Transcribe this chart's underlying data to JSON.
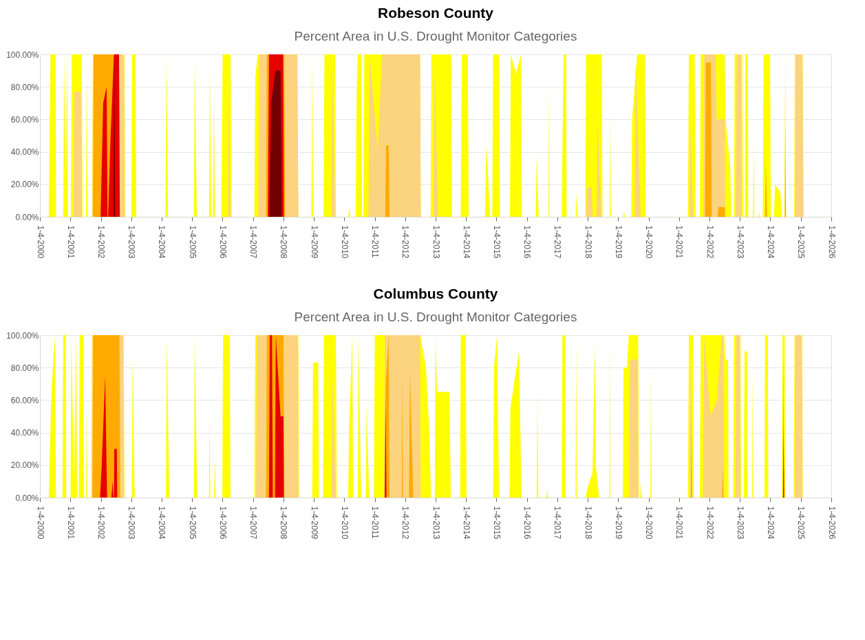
{
  "chart_data": [
    {
      "type": "area",
      "title": "Robeson County",
      "subtitle": "Percent Area in U.S. Drought Monitor Categories",
      "xlim": [
        "2000-01-04",
        "2026-01-04"
      ],
      "xticks": [
        {
          "value": "2000-01-04",
          "label": "1-4-2000"
        },
        {
          "value": "2001-01-04",
          "label": "1-4-2001"
        },
        {
          "value": "2002-01-04",
          "label": "1-4-2002"
        },
        {
          "value": "2003-01-04",
          "label": "1-4-2003"
        },
        {
          "value": "2004-01-04",
          "label": "1-4-2004"
        },
        {
          "value": "2005-01-04",
          "label": "1-4-2005"
        },
        {
          "value": "2006-01-04",
          "label": "1-4-2006"
        },
        {
          "value": "2007-01-04",
          "label": "1-4-2007"
        },
        {
          "value": "2008-01-04",
          "label": "1-4-2008"
        },
        {
          "value": "2009-01-04",
          "label": "1-4-2009"
        },
        {
          "value": "2010-01-04",
          "label": "1-4-2010"
        },
        {
          "value": "2011-01-04",
          "label": "1-4-2011"
        },
        {
          "value": "2012-01-04",
          "label": "1-4-2012"
        },
        {
          "value": "2013-01-04",
          "label": "1-4-2013"
        },
        {
          "value": "2014-01-04",
          "label": "1-4-2014"
        },
        {
          "value": "2015-01-04",
          "label": "1-4-2015"
        },
        {
          "value": "2016-01-04",
          "label": "1-4-2016"
        },
        {
          "value": "2017-01-04",
          "label": "1-4-2017"
        },
        {
          "value": "2018-01-04",
          "label": "1-4-2018"
        },
        {
          "value": "2019-01-04",
          "label": "1-4-2019"
        },
        {
          "value": "2020-01-04",
          "label": "1-4-2020"
        },
        {
          "value": "2021-01-04",
          "label": "1-4-2021"
        },
        {
          "value": "2022-01-04",
          "label": "1-4-2022"
        },
        {
          "value": "2023-01-04",
          "label": "1-4-2023"
        },
        {
          "value": "2024-01-04",
          "label": "1-4-2024"
        },
        {
          "value": "2025-01-04",
          "label": "1-4-2025"
        },
        {
          "value": "2026-01-04",
          "label": "1-4-2026"
        }
      ],
      "ylim": [
        0,
        100
      ],
      "yticks": [
        {
          "value": 0,
          "label": "0.00%"
        },
        {
          "value": 20,
          "label": "20.00%"
        },
        {
          "value": 40,
          "label": "40.00%"
        },
        {
          "value": 60,
          "label": "60.00%"
        },
        {
          "value": 80,
          "label": "80.00%"
        },
        {
          "value": 100,
          "label": "100.00%"
        }
      ],
      "grid": "y",
      "series": [
        {
          "color": "#ffff00",
          "x": [
            "2000-04-20",
            "2000-05-10",
            "2000-07-10",
            "2000-07-15",
            "2000-10-10",
            "2000-10-20",
            "2000-11-10",
            "2000-11-25",
            "2000-12-05",
            "2001-01-10",
            "2001-01-20",
            "2001-05-20",
            "2001-05-30",
            "2001-07-10",
            "2001-07-20",
            "2001-07-30",
            "2001-09-20",
            "2001-10-01",
            "2002-10-15",
            "2002-10-25",
            "2003-01-05",
            "2003-01-15",
            "2003-02-25",
            "2003-03-05",
            "2004-02-20",
            "2004-03-01",
            "2004-03-20",
            "2005-01-25",
            "2005-02-05",
            "2005-03-01",
            "2005-07-25",
            "2005-08-05",
            "2005-08-20",
            "2005-09-10",
            "2005-09-20",
            "2005-10-05",
            "2005-12-20",
            "2006-01-05",
            "2006-04-10",
            "2006-04-25",
            "2007-01-20",
            "2007-02-01",
            "2007-03-01",
            "2008-06-20",
            "2008-07-01",
            "2008-12-05",
            "2008-12-15",
            "2008-12-25",
            "2009-05-01",
            "2009-05-10",
            "2009-09-15",
            "2009-09-25",
            "2010-02-20",
            "2010-03-05",
            "2010-03-15",
            "2010-05-20",
            "2010-06-01",
            "2010-06-15",
            "2010-07-25",
            "2010-08-05",
            "2010-08-20",
            "2010-09-01",
            "2012-07-01",
            "2012-07-10",
            "2012-11-05",
            "2012-11-15",
            "2013-07-10",
            "2013-07-20",
            "2013-11-01",
            "2013-11-15",
            "2014-01-25",
            "2014-02-05",
            "2014-08-20",
            "2014-09-05",
            "2014-10-20",
            "2014-11-15",
            "2014-11-25",
            "2015-02-05",
            "2015-02-15",
            "2015-06-15",
            "2015-06-25",
            "2015-08-25",
            "2015-10-25",
            "2015-11-05",
            "2016-04-20",
            "2016-05-01",
            "2016-05-25",
            "2016-09-20",
            "2016-09-25",
            "2016-10-01",
            "2017-02-25",
            "2017-03-05",
            "2017-03-20",
            "2017-04-20",
            "2017-04-25",
            "2017-08-10",
            "2017-08-20",
            "2017-08-30",
            "2017-12-05",
            "2017-12-15",
            "2018-06-20",
            "2018-06-30",
            "2018-09-25",
            "2018-10-01",
            "2018-10-08",
            "2019-03-05",
            "2019-03-15",
            "2019-03-25",
            "2019-06-10",
            "2019-06-20",
            "2019-08-20",
            "2019-11-20",
            "2019-12-01",
            "2021-04-20",
            "2021-05-01",
            "2021-07-10",
            "2021-07-20",
            "2021-09-10",
            "2021-09-20",
            "2022-07-05",
            "2022-07-15",
            "2022-09-10",
            "2022-09-20",
            "2022-10-25",
            "2022-11-01",
            "2023-02-01",
            "2023-02-10",
            "2023-03-05",
            "2023-03-10",
            "2023-04-10",
            "2023-04-15",
            "2023-06-10",
            "2023-06-18",
            "2023-06-25",
            "2023-08-15",
            "2023-08-22",
            "2023-08-30",
            "2023-10-05",
            "2023-10-15",
            "2024-01-01",
            "2024-01-10",
            "2024-02-15",
            "2024-03-01",
            "2024-05-01",
            "2024-05-25",
            "2024-06-20",
            "2024-07-01",
            "2024-07-10",
            "2024-10-15",
            "2024-10-25",
            "2025-01-25",
            "2025-02-05"
          ],
          "values": [
            0,
            100,
            100,
            0,
            0,
            100,
            10,
            100,
            0,
            0,
            100,
            100,
            0,
            0,
            95,
            0,
            0,
            100,
            100,
            0,
            0,
            100,
            100,
            0,
            0,
            100,
            0,
            0,
            97,
            0,
            0,
            93,
            0,
            0,
            77,
            0,
            0,
            100,
            100,
            0,
            0,
            85,
            100,
            100,
            0,
            0,
            100,
            0,
            0,
            100,
            100,
            0,
            0,
            6,
            0,
            0,
            75,
            100,
            100,
            0,
            0,
            100,
            100,
            0,
            0,
            100,
            100,
            0,
            0,
            100,
            100,
            0,
            0,
            45,
            0,
            0,
            100,
            100,
            0,
            0,
            100,
            88,
            100,
            0,
            0,
            38,
            0,
            0,
            85,
            0,
            0,
            38,
            100,
            100,
            0,
            0,
            15,
            0,
            0,
            100,
            100,
            0,
            0,
            65,
            0,
            0,
            3,
            0,
            0,
            60,
            100,
            100,
            0,
            0,
            100,
            100,
            0,
            0,
            100,
            100,
            60,
            30,
            0,
            0,
            100,
            100,
            0,
            0,
            100,
            100,
            0,
            0,
            47,
            0,
            0,
            3,
            0,
            0,
            100,
            100,
            0,
            0,
            20,
            15,
            0,
            0,
            100,
            0,
            0,
            100,
            100,
            0
          ]
        },
        {
          "color": "#fcd37f",
          "x": [
            "2001-02-10",
            "2001-02-20",
            "2001-05-10",
            "2001-05-20",
            "2001-09-25",
            "2001-10-05",
            "2002-10-10",
            "2002-10-20",
            "2006-03-10",
            "2006-03-20",
            "2006-04-10",
            "2007-03-10",
            "2007-03-20",
            "2008-06-20",
            "2008-07-01",
            "2009-08-01",
            "2009-08-10",
            "2009-09-20",
            "2010-10-20",
            "2010-11-05",
            "2011-02-10",
            "2011-04-01",
            "2012-07-01",
            "2012-07-10",
            "2012-12-10",
            "2012-12-20",
            "2013-02-05",
            "2017-12-15",
            "2017-12-25",
            "2018-02-20",
            "2018-03-05",
            "2018-04-20",
            "2018-05-01",
            "2018-06-15",
            "2019-07-20",
            "2019-08-01",
            "2019-10-01",
            "2021-05-10",
            "2021-05-20",
            "2021-06-20",
            "2021-10-20",
            "2021-11-01",
            "2022-03-20",
            "2022-04-01",
            "2022-07-05",
            "2022-07-10",
            "2022-11-15",
            "2022-11-25",
            "2023-01-15",
            "2023-01-25",
            "2024-10-25",
            "2024-11-01",
            "2025-01-25",
            "2025-02-05"
          ],
          "values": [
            0,
            77,
            77,
            0,
            0,
            100,
            100,
            0,
            0,
            75,
            0,
            0,
            100,
            100,
            0,
            0,
            95,
            0,
            0,
            100,
            40,
            100,
            100,
            0,
            0,
            95,
            0,
            0,
            18,
            18,
            0,
            0,
            60,
            0,
            0,
            95,
            0,
            0,
            60,
            0,
            0,
            100,
            100,
            60,
            60,
            0,
            0,
            100,
            100,
            0,
            0,
            100,
            100,
            0
          ]
        },
        {
          "color": "#ffaa00",
          "x": [
            "2001-10-01",
            "2001-10-10",
            "2002-08-10",
            "2002-08-20",
            "2007-06-10",
            "2007-06-20",
            "2008-01-15",
            "2008-01-25",
            "2011-05-10",
            "2011-05-20",
            "2011-06-20",
            "2011-06-30",
            "2021-11-10",
            "2021-11-20",
            "2022-01-20",
            "2022-01-30",
            "2022-04-10",
            "2022-04-20",
            "2022-07-05",
            "2022-07-10",
            "2023-11-01",
            "2023-11-10",
            "2023-11-25",
            "2024-06-25",
            "2024-07-01",
            "2024-07-08"
          ],
          "values": [
            0,
            100,
            100,
            0,
            0,
            100,
            100,
            0,
            0,
            44,
            44,
            0,
            0,
            95,
            95,
            0,
            0,
            6,
            6,
            0,
            0,
            35,
            0,
            0,
            58,
            0
          ]
        },
        {
          "color": "#e60000",
          "x": [
            "2002-01-01",
            "2002-02-01",
            "2002-03-15",
            "2002-03-25",
            "2002-04-01",
            "2002-05-01",
            "2002-06-10",
            "2002-08-10",
            "2002-08-20",
            "2007-07-01",
            "2007-07-15",
            "2008-01-01",
            "2008-01-10"
          ],
          "values": [
            0,
            70,
            80,
            0,
            0,
            50,
            100,
            100,
            0,
            0,
            100,
            100,
            0
          ]
        },
        {
          "color": "#730000",
          "x": [
            "2002-06-05",
            "2002-06-15",
            "2002-06-25",
            "2007-07-20",
            "2007-08-10",
            "2007-10-01",
            "2007-12-01",
            "2007-12-15"
          ],
          "values": [
            0,
            100,
            0,
            0,
            70,
            90,
            90,
            0
          ]
        }
      ]
    },
    {
      "type": "area",
      "title": "Columbus County",
      "subtitle": "Percent Area in U.S. Drought Monitor Categories",
      "xlim": [
        "2000-01-04",
        "2026-01-04"
      ],
      "xticks": [
        {
          "value": "2000-01-04",
          "label": "1-4-2000"
        },
        {
          "value": "2001-01-04",
          "label": "1-4-2001"
        },
        {
          "value": "2002-01-04",
          "label": "1-4-2002"
        },
        {
          "value": "2003-01-04",
          "label": "1-4-2003"
        },
        {
          "value": "2004-01-04",
          "label": "1-4-2004"
        },
        {
          "value": "2005-01-04",
          "label": "1-4-2005"
        },
        {
          "value": "2006-01-04",
          "label": "1-4-2006"
        },
        {
          "value": "2007-01-04",
          "label": "1-4-2007"
        },
        {
          "value": "2008-01-04",
          "label": "1-4-2008"
        },
        {
          "value": "2009-01-04",
          "label": "1-4-2009"
        },
        {
          "value": "2010-01-04",
          "label": "1-4-2010"
        },
        {
          "value": "2011-01-04",
          "label": "1-4-2011"
        },
        {
          "value": "2012-01-04",
          "label": "1-4-2012"
        },
        {
          "value": "2013-01-04",
          "label": "1-4-2013"
        },
        {
          "value": "2014-01-04",
          "label": "1-4-2014"
        },
        {
          "value": "2015-01-04",
          "label": "1-4-2015"
        },
        {
          "value": "2016-01-04",
          "label": "1-4-2016"
        },
        {
          "value": "2017-01-04",
          "label": "1-4-2017"
        },
        {
          "value": "2018-01-04",
          "label": "1-4-2018"
        },
        {
          "value": "2019-01-04",
          "label": "1-4-2019"
        },
        {
          "value": "2020-01-04",
          "label": "1-4-2020"
        },
        {
          "value": "2021-01-04",
          "label": "1-4-2021"
        },
        {
          "value": "2022-01-04",
          "label": "1-4-2022"
        },
        {
          "value": "2023-01-04",
          "label": "1-4-2023"
        },
        {
          "value": "2024-01-04",
          "label": "1-4-2024"
        },
        {
          "value": "2025-01-04",
          "label": "1-4-2025"
        },
        {
          "value": "2026-01-04",
          "label": "1-4-2026"
        }
      ],
      "ylim": [
        0,
        100
      ],
      "yticks": [
        {
          "value": 0,
          "label": "0.00%"
        },
        {
          "value": 20,
          "label": "20.00%"
        },
        {
          "value": 40,
          "label": "40.00%"
        },
        {
          "value": 60,
          "label": "60.00%"
        },
        {
          "value": 80,
          "label": "80.00%"
        },
        {
          "value": 100,
          "label": "100.00%"
        }
      ],
      "grid": "y",
      "series": [
        {
          "color": "#ffff00",
          "x": [
            "2000-04-20",
            "2000-05-20",
            "2000-07-01",
            "2000-07-15",
            "2000-10-01",
            "2000-10-10",
            "2000-11-10",
            "2000-11-15",
            "2001-01-05",
            "2001-01-15",
            "2001-02-15",
            "2001-03-15",
            "2001-03-25",
            "2001-04-15",
            "2001-04-25",
            "2001-06-10",
            "2001-06-15",
            "2001-07-10",
            "2001-07-18",
            "2001-07-25",
            "2001-09-10",
            "2001-09-20",
            "2002-10-05",
            "2002-10-15",
            "2003-01-10",
            "2003-01-20",
            "2003-02-15",
            "2004-02-25",
            "2004-03-05",
            "2004-04-05",
            "2005-01-25",
            "2005-02-05",
            "2005-03-05",
            "2005-07-25",
            "2005-08-01",
            "2005-08-10",
            "2005-09-25",
            "2005-10-05",
            "2005-10-12",
            "2006-01-01",
            "2006-01-10",
            "2006-04-01",
            "2006-04-10",
            "2007-01-20",
            "2007-02-01",
            "2008-07-01",
            "2008-07-10",
            "2008-12-15",
            "2008-12-25",
            "2009-02-25",
            "2009-03-05",
            "2009-04-25",
            "2009-05-05",
            "2009-09-25",
            "2009-10-05",
            "2010-02-20",
            "2010-03-01",
            "2010-04-10",
            "2010-04-20",
            "2010-06-15",
            "2010-06-22",
            "2010-07-25",
            "2010-09-20",
            "2010-09-28",
            "2010-10-30",
            "2010-12-25",
            "2011-01-05",
            "2012-07-05",
            "2012-07-20",
            "2012-09-10",
            "2012-10-20",
            "2012-11-10",
            "2012-12-25",
            "2013-01-01",
            "2013-01-20",
            "2013-06-20",
            "2013-07-05",
            "2013-10-25",
            "2013-11-01",
            "2014-01-01",
            "2014-01-10",
            "2014-11-25",
            "2014-12-05",
            "2015-01-10",
            "2015-02-05",
            "2015-06-10",
            "2015-06-20",
            "2015-10-01",
            "2015-11-01",
            "2016-05-01",
            "2016-05-10",
            "2016-05-20",
            "2016-08-25",
            "2016-09-05",
            "2016-09-15",
            "2017-02-25",
            "2017-03-05",
            "2017-04-10",
            "2017-04-15",
            "2017-08-10",
            "2017-08-18",
            "2017-08-25",
            "2017-12-10",
            "2017-12-25",
            "2018-03-01",
            "2018-04-01",
            "2018-04-10",
            "2018-05-20",
            "2018-09-20",
            "2018-09-25",
            "2018-10-01",
            "2019-03-01",
            "2019-03-10",
            "2019-04-20",
            "2019-05-10",
            "2019-09-01",
            "2019-09-10",
            "2019-09-25",
            "2019-10-05",
            "2019-10-15",
            "2020-01-25",
            "2020-02-01",
            "2020-02-08",
            "2021-04-20",
            "2021-05-01",
            "2021-06-20",
            "2021-06-30",
            "2021-09-10",
            "2021-09-20",
            "2022-06-30",
            "2022-07-10",
            "2022-08-15",
            "2022-08-20",
            "2022-10-15",
            "2022-10-25",
            "2023-01-10",
            "2023-01-20",
            "2023-02-20",
            "2023-03-01",
            "2023-03-31",
            "2023-04-05",
            "2023-05-30",
            "2023-06-05",
            "2023-06-12",
            "2023-10-25",
            "2023-11-01",
            "2023-12-05",
            "2023-12-10",
            "2024-05-20",
            "2024-05-28",
            "2024-06-25",
            "2024-07-01",
            "2024-10-10",
            "2024-10-20",
            "2025-01-20",
            "2025-01-28"
          ],
          "values": [
            0,
            63,
            100,
            0,
            0,
            100,
            100,
            0,
            0,
            100,
            12,
            100,
            0,
            0,
            100,
            100,
            0,
            0,
            55,
            0,
            0,
            100,
            100,
            0,
            0,
            85,
            0,
            0,
            100,
            0,
            0,
            100,
            0,
            0,
            50,
            0,
            0,
            25,
            0,
            0,
            100,
            100,
            0,
            0,
            100,
            100,
            0,
            0,
            83,
            83,
            0,
            0,
            100,
            100,
            0,
            0,
            40,
            100,
            0,
            0,
            100,
            0,
            0,
            57,
            0,
            0,
            100,
            100,
            95,
            80,
            40,
            0,
            0,
            100,
            65,
            65,
            0,
            0,
            100,
            100,
            0,
            0,
            80,
            100,
            0,
            0,
            55,
            90,
            0,
            0,
            63,
            0,
            0,
            5,
            0,
            0,
            100,
            100,
            0,
            0,
            100,
            0,
            0,
            5,
            15,
            95,
            20,
            0,
            0,
            100,
            0,
            0,
            80,
            80,
            100,
            100,
            0,
            0,
            10,
            0,
            0,
            80,
            0,
            0,
            100,
            100,
            0,
            0,
            100,
            100,
            85,
            85,
            0,
            0,
            100,
            100,
            0,
            0,
            90,
            90,
            0,
            0,
            80,
            0,
            0,
            100,
            100,
            0,
            0,
            100,
            100,
            0,
            0,
            100,
            100,
            0
          ]
        },
        {
          "color": "#fcd37f",
          "x": [
            "2001-09-15",
            "2001-09-25",
            "2002-10-01",
            "2002-10-10",
            "2007-02-10",
            "2007-02-20",
            "2008-06-25",
            "2008-07-05",
            "2009-08-01",
            "2009-08-10",
            "2009-09-25",
            "2011-04-25",
            "2011-05-05",
            "2012-07-01",
            "2012-07-10",
            "2019-05-15",
            "2019-05-25",
            "2019-08-25",
            "2019-09-05",
            "2021-05-10",
            "2021-05-20",
            "2021-06-15",
            "2021-10-15",
            "2021-11-01",
            "2022-01-15",
            "2022-04-01",
            "2022-06-01",
            "2022-06-20",
            "2022-06-30",
            "2022-11-10",
            "2022-11-20",
            "2023-01-05",
            "2023-01-10",
            "2024-10-20",
            "2024-10-28",
            "2025-01-15",
            "2025-01-25"
          ],
          "values": [
            0,
            100,
            100,
            0,
            0,
            100,
            100,
            0,
            0,
            80,
            0,
            0,
            100,
            100,
            0,
            0,
            85,
            85,
            0,
            0,
            90,
            0,
            0,
            100,
            50,
            60,
            100,
            100,
            0,
            0,
            100,
            100,
            0,
            0,
            100,
            100,
            0
          ]
        },
        {
          "color": "#ffaa00",
          "x": [
            "2001-09-25",
            "2001-10-05",
            "2002-08-15",
            "2002-08-25",
            "2007-06-10",
            "2007-06-20",
            "2008-01-05",
            "2008-01-15",
            "2011-05-01",
            "2011-05-15",
            "2011-06-20",
            "2011-06-30",
            "2011-11-25",
            "2011-12-01",
            "2011-12-08",
            "2012-02-20",
            "2012-03-01",
            "2012-04-10",
            "2021-05-25",
            "2021-06-01",
            "2021-06-08",
            "2022-06-05",
            "2022-06-10",
            "2022-06-20",
            "2024-06-01",
            "2024-06-08",
            "2024-06-18"
          ],
          "values": [
            0,
            100,
            100,
            0,
            0,
            100,
            100,
            0,
            0,
            70,
            100,
            0,
            0,
            78,
            0,
            0,
            78,
            0,
            0,
            50,
            0,
            0,
            20,
            0,
            0,
            90,
            0
          ]
        },
        {
          "color": "#e60000",
          "x": [
            "2001-12-25",
            "2002-01-15",
            "2002-02-25",
            "2002-03-20",
            "2002-05-10",
            "2002-05-25",
            "2002-06-05",
            "2002-06-10",
            "2002-06-15",
            "2002-07-15",
            "2002-07-20",
            "2007-07-15",
            "2007-07-25",
            "2007-08-20",
            "2007-08-30",
            "2007-09-25",
            "2007-10-05",
            "2007-12-01",
            "2008-01-05",
            "2008-01-10",
            "2011-05-05",
            "2011-05-15",
            "2011-05-25",
            "2024-06-05",
            "2024-06-10",
            "2024-06-18"
          ],
          "values": [
            0,
            20,
            75,
            0,
            0,
            10,
            0,
            0,
            30,
            30,
            0,
            0,
            100,
            100,
            0,
            0,
            100,
            50,
            50,
            0,
            0,
            60,
            0,
            0,
            45,
            0
          ]
        }
      ]
    }
  ]
}
